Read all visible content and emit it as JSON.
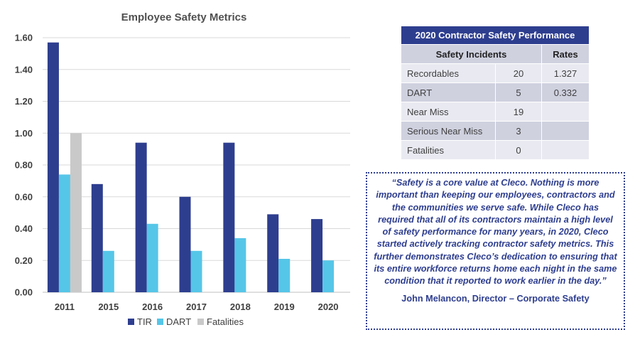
{
  "chart_data": {
    "type": "bar",
    "title": "Employee Safety Metrics",
    "categories": [
      "2011",
      "2015",
      "2016",
      "2017",
      "2018",
      "2019",
      "2020"
    ],
    "series": [
      {
        "name": "TIR",
        "color": "#2e3e8f",
        "values": [
          1.57,
          0.68,
          0.94,
          0.6,
          0.94,
          0.49,
          0.46
        ]
      },
      {
        "name": "DART",
        "color": "#56c6e8",
        "values": [
          0.74,
          0.26,
          0.43,
          0.26,
          0.34,
          0.21,
          0.2
        ]
      },
      {
        "name": "Fatalities",
        "color": "#c9c9c9",
        "values": [
          1.0,
          0,
          0,
          0,
          0,
          0,
          0
        ]
      }
    ],
    "ylim": [
      0,
      1.6
    ],
    "yticks": [
      "0.00",
      "0.20",
      "0.40",
      "0.60",
      "0.80",
      "1.00",
      "1.20",
      "1.40",
      "1.60"
    ],
    "xlabel": "",
    "ylabel": "",
    "grid": true,
    "legend": "bottom"
  },
  "table": {
    "title": "2020 Contractor Safety Performance",
    "header_incidents": "Safety Incidents",
    "header_rates": "Rates",
    "rows": [
      {
        "label": "Recordables",
        "count": "20",
        "rate": "1.327"
      },
      {
        "label": "DART",
        "count": "5",
        "rate": "0.332"
      },
      {
        "label": "Near Miss",
        "count": "19",
        "rate": ""
      },
      {
        "label": "Serious Near Miss",
        "count": "3",
        "rate": ""
      },
      {
        "label": "Fatalities",
        "count": "0",
        "rate": ""
      }
    ]
  },
  "quote": {
    "text": "“Safety is a core value at Cleco. Nothing is more important than keeping our employees, contractors and the communities we serve safe. While Cleco has required that all of its contractors maintain a high level of safety performance for many years, in 2020, Cleco started actively tracking contractor safety metrics.  This further demonstrates Cleco’s dedication to ensuring that its entire workforce returns home each night in the same condition that it reported to work earlier in the day.”",
    "author": "John Melancon, Director – Corporate Safety"
  }
}
